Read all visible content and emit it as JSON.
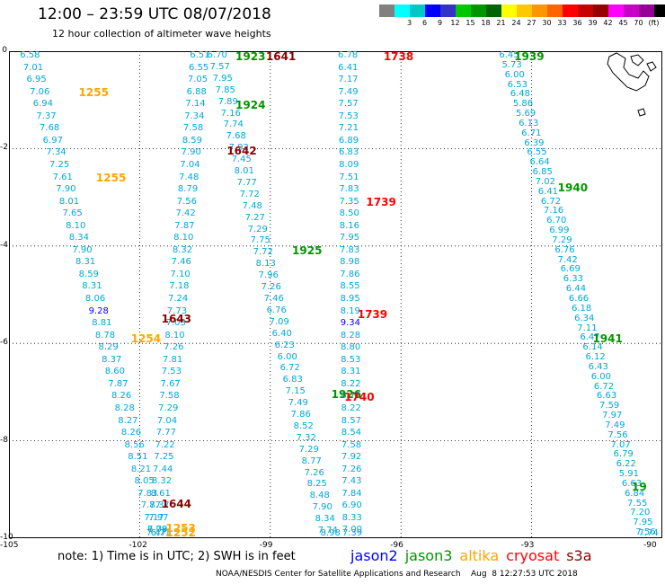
{
  "title": "12:00 – 23:59 UTC 08/07/2018",
  "subtitle": "12 hour collection of altimeter wave heights",
  "colorbar": {
    "colors": [
      "#808080",
      "#00ffff",
      "#00c8c8",
      "#0000ff",
      "#3232c8",
      "#00c800",
      "#009600",
      "#006400",
      "#ffff00",
      "#ffc800",
      "#ff9600",
      "#ff6400",
      "#ff0000",
      "#c80000",
      "#960000",
      "#ff00ff",
      "#c800c8",
      "#960096",
      "#000000"
    ],
    "ticks": [
      "3",
      "6",
      "9",
      "12",
      "15",
      "18",
      "21",
      "24",
      "27",
      "30",
      "33",
      "36",
      "39",
      "42",
      "45",
      "70",
      "(ft)"
    ]
  },
  "axes": {
    "x_ticks": [
      "-105",
      "-102",
      "-99",
      "-96",
      "-93",
      "-90"
    ],
    "y_ticks": [
      "0",
      "-2",
      "-4",
      "-6",
      "-8",
      "-10"
    ],
    "xlim": [
      -105,
      -90
    ],
    "ylim": [
      -10,
      0
    ]
  },
  "note": "note:  1) Time is in UTC; 2) SWH is in feet",
  "legend": [
    {
      "label": "jason2",
      "color": "#0000ff"
    },
    {
      "label": "jason3",
      "color": "#009600"
    },
    {
      "label": "altika",
      "color": "#ffa500"
    },
    {
      "label": "cryosat",
      "color": "#ff0000"
    },
    {
      "label": "s3a",
      "color": "#8b0000"
    }
  ],
  "footer": "NOAA/NESDIS Center for Satellite Applications and Research    Aug  8 12:27:53 UTC 2018",
  "pass_labels": [
    {
      "text": "1923",
      "lon": -99.8,
      "lat": -0.05,
      "sat": "jason3"
    },
    {
      "text": "1641",
      "lon": -99.1,
      "lat": -0.05,
      "sat": "s3a"
    },
    {
      "text": "1738",
      "lon": -96.4,
      "lat": -0.1,
      "sat": "cryosat"
    },
    {
      "text": "1939",
      "lon": -93.4,
      "lat": -0.05,
      "sat": "jason3"
    },
    {
      "text": "1255",
      "lon": -103.4,
      "lat": -0.85,
      "sat": "altika"
    },
    {
      "text": "1924",
      "lon": -99.8,
      "lat": -1.1,
      "sat": "jason3"
    },
    {
      "text": "1642",
      "lon": -100.0,
      "lat": -2.05,
      "sat": "s3a"
    },
    {
      "text": "1255",
      "lon": -103.0,
      "lat": -2.6,
      "sat": "altika"
    },
    {
      "text": "1940",
      "lon": -92.4,
      "lat": -2.8,
      "sat": "jason3"
    },
    {
      "text": "1739",
      "lon": -96.8,
      "lat": -3.1,
      "sat": "cryosat"
    },
    {
      "text": "1925",
      "lon": -98.5,
      "lat": -4.1,
      "sat": "jason3"
    },
    {
      "text": "1643",
      "lon": -101.5,
      "lat": -5.5,
      "sat": "s3a"
    },
    {
      "text": "1739",
      "lon": -97.0,
      "lat": -5.4,
      "sat": "cryosat"
    },
    {
      "text": "1254",
      "lon": -102.2,
      "lat": -5.9,
      "sat": "altika"
    },
    {
      "text": "1941",
      "lon": -91.6,
      "lat": -5.9,
      "sat": "jason3"
    },
    {
      "text": "1926",
      "lon": -97.6,
      "lat": -7.05,
      "sat": "jason3"
    },
    {
      "text": "1740",
      "lon": -97.3,
      "lat": -7.1,
      "sat": "cryosat"
    },
    {
      "text": "1644",
      "lon": -101.5,
      "lat": -9.3,
      "sat": "s3a"
    },
    {
      "text": "1253",
      "lon": -101.4,
      "lat": -9.8,
      "sat": "altika"
    },
    {
      "text": "1252",
      "lon": -101.4,
      "lat": -10.05,
      "sat": "altika"
    },
    {
      "text": "19",
      "lon": -90.0,
      "lat": -8.95,
      "sat": "jason3"
    }
  ],
  "tracks": [
    {
      "name": "altika-1255",
      "color": "#00a8d8",
      "lon_start": -104.5,
      "lon_end": -101.5,
      "lat_start": 0.0,
      "lat_end": -10.0,
      "values": [
        "6.58",
        "7.01",
        "6.95",
        "7.06",
        "6.94",
        "7.37",
        "7.68",
        "6.97",
        "7.34",
        "7.25",
        "7.61",
        "7.90",
        "8.01",
        "7.65",
        "8.10",
        "8.34",
        "7.90",
        "8.31",
        "8.59",
        "8.31",
        "8.06",
        "9.28",
        "8.81",
        "8.78",
        "8.29",
        "8.37",
        "8.60",
        "7.87",
        "8.26",
        "8.28",
        "8.27",
        "8.26",
        "8.56",
        "8.51",
        "8.21",
        "8.05",
        "7.83",
        "7.77",
        "7.17",
        "6.78",
        "6.71"
      ]
    },
    {
      "name": "s3a-1641",
      "color": "#00a8d8",
      "lon_start": -100.6,
      "lon_end": -101.6,
      "lat_start": 0.0,
      "lat_end": -10.0,
      "values": [
        "6.51",
        "6.55",
        "7.05",
        "6.88",
        "7.14",
        "7.34",
        "7.58",
        "8.59",
        "7.90",
        "7.04",
        "7.48",
        "8.79",
        "7.56",
        "7.42",
        "7.87",
        "8.10",
        "8.32",
        "7.46",
        "7.10",
        "7.18",
        "7.24",
        "7.73",
        "7.03",
        "8.10",
        "7.26",
        "7.81",
        "7.53",
        "7.67",
        "7.58",
        "7.29",
        "7.04",
        "7.77",
        "7.22",
        "7.25",
        "7.44",
        "8.32",
        "8.61",
        "8.37",
        "7.97",
        "7.09",
        "7.47"
      ]
    },
    {
      "name": "jason3-1923",
      "color": "#00a8d8",
      "lon_start": -100.2,
      "lon_end": -97.6,
      "lat_start": 0.0,
      "lat_end": -10.0,
      "values": [
        "6.70",
        "7.57",
        "7.95",
        "7.85",
        "7.89",
        "7.16",
        "7.74",
        "7.68",
        "7.92",
        "7.45",
        "8.01",
        "7.77",
        "7.72",
        "7.48",
        "7.27",
        "7.29",
        "7.75",
        "7.72",
        "8.13",
        "7.96",
        "7.26",
        "7.46",
        "6.76",
        "7.09",
        "6.40",
        "6.23",
        "6.00",
        "6.72",
        "6.83",
        "7.15",
        "7.49",
        "7.86",
        "8.52",
        "7.32",
        "7.29",
        "8.77",
        "7.26",
        "8.25",
        "8.48",
        "7.90",
        "8.34",
        "7.74",
        "8.98"
      ]
    },
    {
      "name": "cryosat-1738",
      "color": "#00a8d8",
      "lon_start": -97.2,
      "lon_end": -97.1,
      "lat_start": 0.0,
      "lat_end": -10.0,
      "values": [
        "6.78",
        "6.41",
        "7.17",
        "7.49",
        "7.57",
        "7.53",
        "7.21",
        "6.89",
        "6.83",
        "8.09",
        "7.51",
        "7.83",
        "7.35",
        "8.50",
        "8.16",
        "7.95",
        "7.83",
        "8.98",
        "7.86",
        "8.55",
        "8.95",
        "8.19",
        "9.34",
        "8.28",
        "8.80",
        "8.53",
        "8.31",
        "8.22",
        "8.72",
        "8.22",
        "8.57",
        "8.54",
        "7.58",
        "7.92",
        "7.26",
        "7.43",
        "7.84",
        "6.90",
        "8.33",
        "7.00",
        "7.39"
      ]
    },
    {
      "name": "jason3-1939",
      "color": "#00a8d8",
      "lon_start": -93.5,
      "lon_end": -90.3,
      "lat_start": 0.0,
      "lat_end": -10.0,
      "values": [
        "6.45",
        "5.73",
        "6.00",
        "6.53",
        "6.48",
        "5.86",
        "5.69",
        "6.13",
        "6.71",
        "6.39",
        "6.55",
        "6.64",
        "6.85",
        "7.02",
        "6.41",
        "6.72",
        "7.16",
        "6.70",
        "6.99",
        "7.29",
        "6.76",
        "7.42",
        "6.69",
        "6.33",
        "6.44",
        "6.66",
        "6.18",
        "6.34",
        "7.11",
        "6.47",
        "6.14",
        "6.12",
        "6.43",
        "6.00",
        "6.72",
        "6.63",
        "7.59",
        "7.97",
        "7.49",
        "7.56",
        "7.07",
        "6.79",
        "6.22",
        "5.91",
        "6.63",
        "6.84",
        "7.55",
        "7.20",
        "7.95",
        "7.56",
        "7.74"
      ]
    }
  ]
}
